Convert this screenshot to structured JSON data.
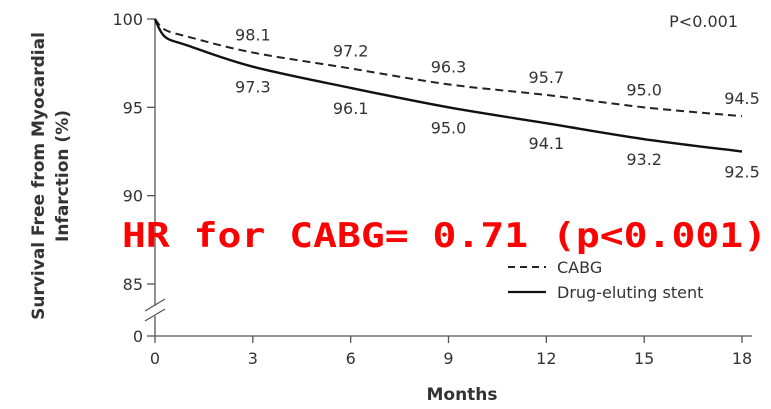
{
  "chart_data": {
    "type": "line",
    "xlabel": "Months",
    "ylabel_lines": [
      "Survival Free from Myocardial",
      "Infarction (%)"
    ],
    "x_ticks": [
      0,
      3,
      6,
      9,
      12,
      15,
      18
    ],
    "x_tick_labels": [
      "0",
      "3",
      "6",
      "9",
      "12",
      "15",
      "18"
    ],
    "y_ticks": [
      0,
      85,
      90,
      95,
      100
    ],
    "y_tick_labels": [
      "0",
      "85",
      "90",
      "95",
      "100"
    ],
    "xlim": [
      0,
      18
    ],
    "ylim": [
      85,
      100
    ],
    "y_axis_break": true,
    "grid": false,
    "legend_position": "lower-right",
    "p_value_label": "P<0.001",
    "annotation": "HR for CABG= 0.71 (p<0.001)",
    "series": [
      {
        "name": "CABG",
        "line_style": "dashed",
        "color": "#222222",
        "x": [
          0,
          0.3,
          1,
          3,
          6,
          9,
          12,
          15,
          18
        ],
        "y": [
          100,
          99.4,
          99.0,
          98.1,
          97.2,
          96.3,
          95.7,
          95.0,
          94.5
        ],
        "labels": [
          {
            "x": 3,
            "y": 98.1,
            "text": "98.1"
          },
          {
            "x": 6,
            "y": 97.2,
            "text": "97.2"
          },
          {
            "x": 9,
            "y": 96.3,
            "text": "96.3"
          },
          {
            "x": 12,
            "y": 95.7,
            "text": "95.7"
          },
          {
            "x": 15,
            "y": 95.0,
            "text": "95.0"
          },
          {
            "x": 18,
            "y": 94.5,
            "text": "94.5"
          }
        ]
      },
      {
        "name": "Drug-eluting stent",
        "line_style": "solid",
        "color": "#111111",
        "x": [
          0,
          0.3,
          1,
          3,
          6,
          9,
          12,
          15,
          18
        ],
        "y": [
          100,
          99.0,
          98.5,
          97.3,
          96.1,
          95.0,
          94.1,
          93.2,
          92.5
        ],
        "labels": [
          {
            "x": 3,
            "y": 97.3,
            "text": "97.3"
          },
          {
            "x": 6,
            "y": 96.1,
            "text": "96.1"
          },
          {
            "x": 9,
            "y": 95.0,
            "text": "95.0"
          },
          {
            "x": 12,
            "y": 94.1,
            "text": "94.1"
          },
          {
            "x": 15,
            "y": 93.2,
            "text": "93.2"
          },
          {
            "x": 18,
            "y": 92.5,
            "text": "92.5"
          }
        ]
      }
    ]
  }
}
